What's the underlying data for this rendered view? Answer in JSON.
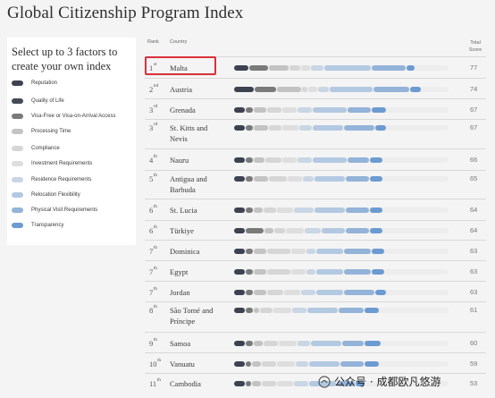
{
  "page": {
    "title": "Global Citizenship Program Index"
  },
  "panel": {
    "heading": "Select up to 3 factors to create your own index",
    "factors": [
      {
        "label": "Reputation",
        "color": "#3c4250"
      },
      {
        "label": "Quality of Life",
        "color": "#474b55"
      },
      {
        "label": "Visa-Free or Visa-on-Arrival Access",
        "color": "#7a7a7a"
      },
      {
        "label": "Processing Time",
        "color": "#c3c3c3"
      },
      {
        "label": "Compliance",
        "color": "#d6d6d6"
      },
      {
        "label": "Investment Requirements",
        "color": "#dedede"
      },
      {
        "label": "Residence Requirements",
        "color": "#c8d6e6"
      },
      {
        "label": "Relocation Flexibility",
        "color": "#b3c9e2"
      },
      {
        "label": "Physical Visit Requirements",
        "color": "#93b3d9"
      },
      {
        "label": "Transparency",
        "color": "#6c9bd2"
      }
    ]
  },
  "table": {
    "headers": {
      "rank": "Rank",
      "country": "Country",
      "total_line1": "Total",
      "total_line2": "Score"
    },
    "rows": [
      {
        "rank": "1",
        "suffix": "st",
        "country": "Malta",
        "score": "77"
      },
      {
        "rank": "2",
        "suffix": "nd",
        "country": "Austria",
        "score": "74"
      },
      {
        "rank": "3",
        "suffix": "rd",
        "country": "Grenada",
        "score": "67"
      },
      {
        "rank": "3",
        "suffix": "rd",
        "country": "St. Kitts and Nevis",
        "score": "67"
      },
      {
        "rank": "4",
        "suffix": "th",
        "country": "Nauru",
        "score": "66"
      },
      {
        "rank": "5",
        "suffix": "th",
        "country": "Antigua and Barbuda",
        "score": "65"
      },
      {
        "rank": "6",
        "suffix": "th",
        "country": "St. Lucia",
        "score": "64"
      },
      {
        "rank": "6",
        "suffix": "th",
        "country": "Türkiye",
        "score": "64"
      },
      {
        "rank": "7",
        "suffix": "th",
        "country": "Dominica",
        "score": "63"
      },
      {
        "rank": "7",
        "suffix": "th",
        "country": "Egypt",
        "score": "63"
      },
      {
        "rank": "7",
        "suffix": "th",
        "country": "Jordan",
        "score": "63"
      },
      {
        "rank": "8",
        "suffix": "th",
        "country": "São Tomé and Príncipe",
        "score": "61"
      },
      {
        "rank": "9",
        "suffix": "th",
        "country": "Samoa",
        "score": "60"
      },
      {
        "rank": "10",
        "suffix": "th",
        "country": "Vanuatu",
        "score": "59"
      },
      {
        "rank": "11",
        "suffix": "th",
        "country": "Cambodia",
        "score": "53"
      }
    ]
  },
  "watermark": {
    "text": "公众号 · 成都欧凡悠游"
  }
}
